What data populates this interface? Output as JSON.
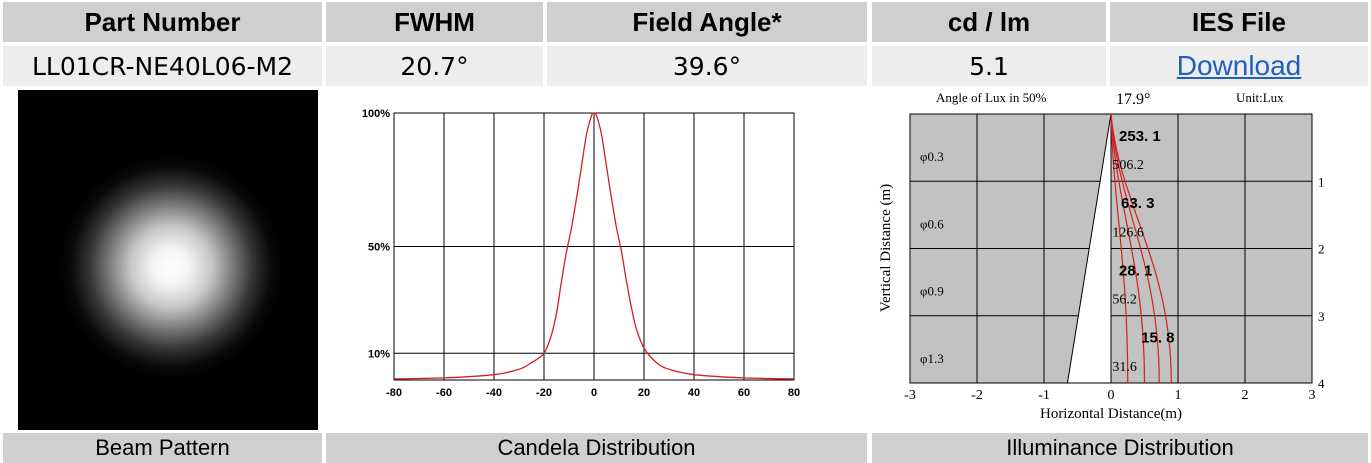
{
  "header": {
    "part_number": "Part Number",
    "fwhm": "FWHM",
    "field_angle": "Field Angle*",
    "cd_lm": "cd / lm",
    "ies_file": "IES File"
  },
  "values": {
    "part_number": "LL01CR-NE40L06-M2",
    "fwhm": "20.7°",
    "field_angle": "39.6°",
    "cd_lm": "5.1",
    "ies_link": "Download"
  },
  "footer": {
    "beam_pattern": "Beam Pattern",
    "candela": "Candela Distribution",
    "illuminance": "Illuminance Distribution"
  },
  "chart_data": [
    {
      "type": "line",
      "x": [
        -80,
        -60,
        -40,
        -30,
        -25,
        -20,
        -17,
        -15,
        -13,
        -11,
        -9,
        -7,
        -5,
        -3,
        -1,
        0,
        1,
        3,
        5,
        7,
        9,
        11,
        13,
        15,
        17,
        20,
        25,
        30,
        40,
        60,
        80
      ],
      "series": [
        {
          "values": [
            0.4,
            0.8,
            2,
            4,
            6.5,
            10,
            17,
            25,
            37,
            48,
            57,
            68,
            80,
            92,
            99,
            100,
            99,
            92,
            80,
            68,
            57,
            48,
            37,
            27,
            19,
            12,
            6.5,
            4,
            2,
            0.8,
            0.4
          ]
        }
      ],
      "y_tick_labels": [
        "100%",
        "50%",
        "10%"
      ],
      "x_tick_labels": [
        "-80",
        "-60",
        "-40",
        "-20",
        "0",
        "20",
        "40",
        "60",
        "80"
      ],
      "xlim": [
        -80,
        80
      ],
      "ylim": [
        0,
        100
      ],
      "grid": true,
      "color": "#d42020"
    },
    {
      "type": "line",
      "title": "Angle of Lux in 50%",
      "angle_value": "17.9°",
      "unit": "Unit:Lux",
      "xlabel": "Horizontal Distance(m)",
      "ylabel": "Vertical Distance (m)",
      "x_tick_labels": [
        "-3",
        "-2",
        "-1",
        "0",
        "1",
        "2",
        "3"
      ],
      "y_tick_labels": [
        "1",
        "2",
        "3",
        "4"
      ],
      "xlim": [
        -3,
        3
      ],
      "ylim": [
        0,
        4
      ],
      "grid": true,
      "diameters": [
        "φ0.3",
        "φ0.6",
        "φ0.9",
        "φ1.3"
      ],
      "center_lux": [
        "253. 1",
        "63. 3",
        "28. 1",
        "15. 8"
      ],
      "half_lux": [
        "506.2",
        "126.6",
        "56.2",
        "31.6"
      ],
      "colors": {
        "panel": "#c2c2c2",
        "curve": "#d42020"
      }
    }
  ]
}
